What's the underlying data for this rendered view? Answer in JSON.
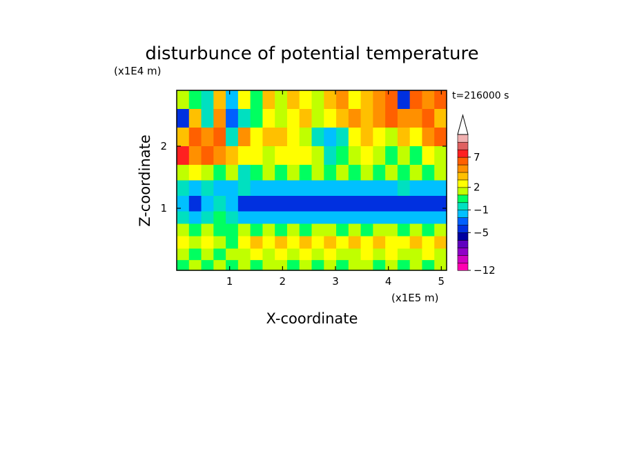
{
  "chart_data": {
    "type": "heatmap",
    "title": "disturbunce of potential temperature",
    "xlabel": "X-coordinate",
    "ylabel": "Z-coordinate",
    "x_unit": "(x1E5 m)",
    "y_unit": "(x1E4 m)",
    "time_label": "t=216000 s",
    "xlim": [
      0,
      5.1
    ],
    "ylim": [
      0,
      2.9
    ],
    "x_ticks": [
      1,
      2,
      3,
      4,
      5
    ],
    "y_ticks": [
      1,
      2
    ],
    "colorbar": {
      "levels": [
        -12,
        -11,
        -10,
        -9,
        -7,
        -5,
        -4,
        -3,
        -1,
        0,
        1,
        2,
        3,
        4,
        5,
        7,
        8,
        9
      ],
      "tick_labels": [
        "7",
        "2",
        "−1",
        "−5",
        "−12"
      ],
      "colors": [
        "#ff00b0",
        "#d000c0",
        "#9000c8",
        "#6000c0",
        "#0000a0",
        "#0030e0",
        "#0060ff",
        "#00c0ff",
        "#00e0c0",
        "#00ff60",
        "#c0ff00",
        "#ffff00",
        "#ffc000",
        "#ff9000",
        "#ff6000",
        "#ff2020",
        "#e06060",
        "#f0b0b0"
      ],
      "extend_top": true
    },
    "field_rows": [
      {
        "z": 2.75,
        "values": [
          1,
          0,
          -1,
          3,
          -3,
          2,
          0,
          3,
          1,
          3,
          2,
          1,
          3,
          4,
          2,
          3,
          4,
          5,
          -5,
          5,
          4,
          6
        ]
      },
      {
        "z": 2.45,
        "values": [
          -5,
          3,
          -1,
          4,
          -4,
          -1,
          0,
          2,
          1,
          2,
          3,
          1,
          2,
          3,
          4,
          3,
          4,
          5,
          4,
          4,
          5,
          3
        ]
      },
      {
        "z": 2.15,
        "values": [
          3,
          5,
          4,
          5,
          -1,
          4,
          2,
          3,
          3,
          2,
          1,
          -1,
          -3,
          -1,
          2,
          3,
          2,
          1,
          3,
          2,
          4,
          5
        ]
      },
      {
        "z": 1.85,
        "values": [
          7,
          4,
          5,
          4,
          3,
          2,
          2,
          1,
          2,
          2,
          2,
          1,
          -1,
          0,
          1,
          2,
          1,
          0,
          1,
          0,
          2,
          1
        ]
      },
      {
        "z": 1.55,
        "values": [
          1,
          2,
          1,
          0,
          1,
          -1,
          0,
          1,
          0,
          1,
          0,
          1,
          0,
          1,
          0,
          1,
          0,
          1,
          0,
          1,
          0,
          1
        ]
      },
      {
        "z": 1.35,
        "values": [
          -1,
          -3,
          -1,
          -3,
          -3,
          -1,
          -3,
          -3,
          -3,
          -3,
          -3,
          -3,
          -3,
          -3,
          -3,
          -3,
          -3,
          -3,
          -1,
          -3,
          -3,
          -3
        ]
      },
      {
        "z": 1.05,
        "values": [
          -3,
          -5,
          -3,
          -1,
          -3,
          -5,
          -5,
          -5,
          -5,
          -5,
          -5,
          -5,
          -5,
          -5,
          -5,
          -5,
          -5,
          -5,
          -5,
          -5,
          -5,
          -5
        ]
      },
      {
        "z": 0.85,
        "values": [
          -1,
          -3,
          -1,
          0,
          -1,
          -3,
          -3,
          -3,
          -3,
          -3,
          -3,
          -3,
          -3,
          -3,
          -3,
          -3,
          -3,
          -3,
          -3,
          -3,
          -3,
          -3
        ]
      },
      {
        "z": 0.65,
        "values": [
          1,
          0,
          1,
          0,
          0,
          1,
          0,
          1,
          0,
          1,
          0,
          1,
          1,
          0,
          1,
          0,
          1,
          1,
          0,
          1,
          0,
          1
        ]
      },
      {
        "z": 0.45,
        "values": [
          2,
          1,
          2,
          1,
          0,
          2,
          3,
          2,
          3,
          2,
          3,
          2,
          3,
          2,
          3,
          2,
          3,
          2,
          2,
          3,
          2,
          3
        ]
      },
      {
        "z": 0.25,
        "values": [
          1,
          0,
          1,
          0,
          1,
          1,
          2,
          1,
          2,
          1,
          2,
          1,
          2,
          1,
          1,
          2,
          1,
          2,
          1,
          1,
          2,
          1
        ]
      },
      {
        "z": 0.08,
        "values": [
          0,
          1,
          0,
          1,
          0,
          1,
          0,
          1,
          1,
          0,
          1,
          0,
          1,
          0,
          1,
          1,
          0,
          1,
          0,
          1,
          0,
          1
        ]
      }
    ]
  }
}
